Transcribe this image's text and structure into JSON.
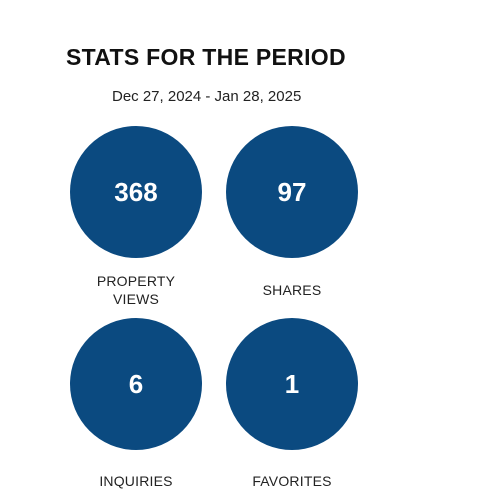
{
  "header": {
    "title": "STATS FOR THE PERIOD",
    "date_range": "Dec 27, 2024 - Jan 28, 2025"
  },
  "stats": {
    "views": {
      "value": "368",
      "label_line1": "PROPERTY",
      "label_line2": "VIEWS"
    },
    "shares": {
      "value": "97",
      "label": "SHARES"
    },
    "inquiries": {
      "value": "6",
      "label": "INQUIRIES"
    },
    "favorites": {
      "value": "1",
      "label": "FAVORITES"
    }
  },
  "colors": {
    "circle": "#0b4a80",
    "text": "#222222",
    "background": "#ffffff"
  }
}
